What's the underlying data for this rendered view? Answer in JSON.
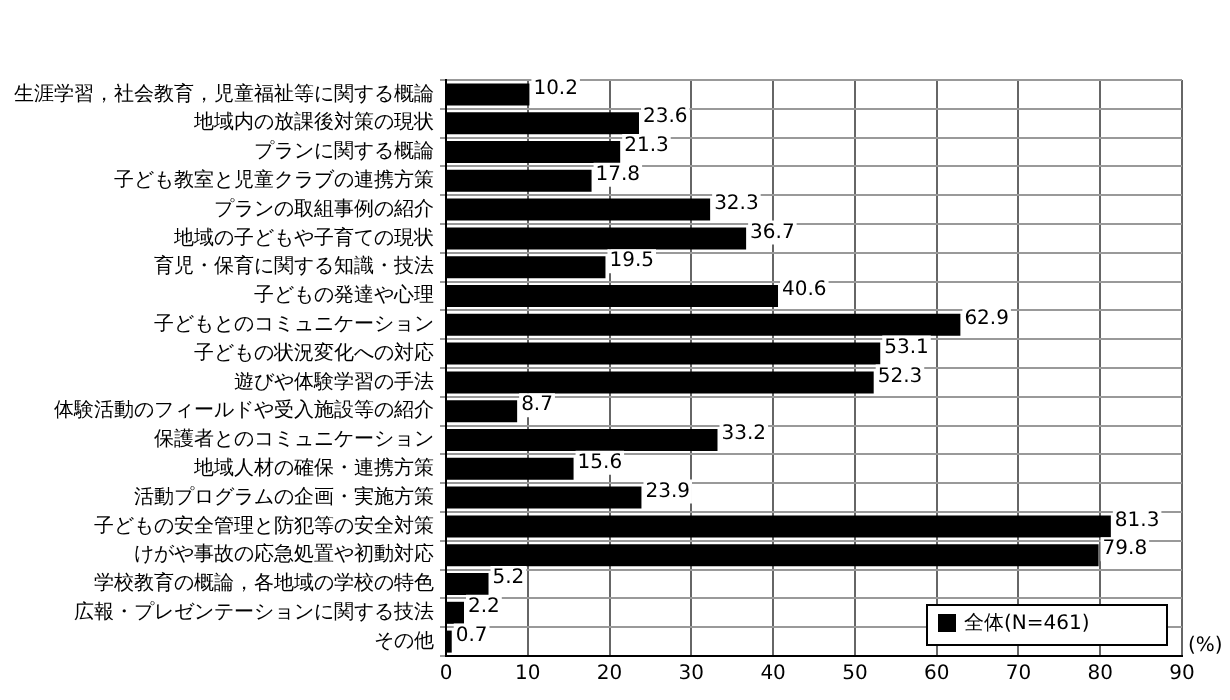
{
  "chart_data": {
    "type": "bar",
    "orientation": "horizontal",
    "xlabel": "(%)",
    "categories": [
      "生涯学習，社会教育，児童福祉等に関する概論",
      "地域内の放課後対策の現状",
      "プランに関する概論",
      "子ども教室と児童クラブの連携方策",
      "プランの取組事例の紹介",
      "地域の子どもや子育ての現状",
      "育児・保育に関する知識・技法",
      "子どもの発達や心理",
      "子どもとのコミュニケーション",
      "子どもの状況変化への対応",
      "遊びや体験学習の手法",
      "体験活動のフィールドや受入施設等の紹介",
      "保護者とのコミュニケーション",
      "地域人材の確保・連携方策",
      "活動プログラムの企画・実施方策",
      "子どもの安全管理と防犯等の安全対策",
      "けがや事故の応急処置や初動対応",
      "学校教育の概論，各地域の学校の特色",
      "広報・プレゼンテーションに関する技法",
      "その他"
    ],
    "series": [
      {
        "name": "全体(N=461)",
        "color": "#000000",
        "values": [
          10.2,
          23.6,
          21.3,
          17.8,
          32.3,
          36.7,
          19.5,
          40.6,
          62.9,
          53.1,
          52.3,
          8.7,
          33.2,
          15.6,
          23.9,
          81.3,
          79.8,
          5.2,
          2.2,
          0.7
        ]
      }
    ],
    "xlim": [
      0,
      90
    ],
    "xticks": [
      0,
      10,
      20,
      30,
      40,
      50,
      60,
      70,
      80,
      90
    ],
    "grid": true,
    "legend": "bottom right",
    "data_labels": true
  }
}
